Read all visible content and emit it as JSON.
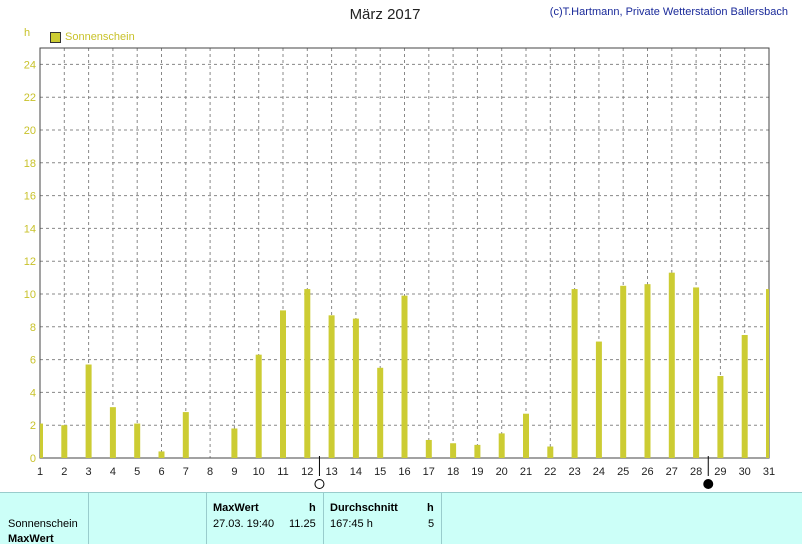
{
  "header": {
    "title": "März 2017",
    "credit": "(c)T.Hartmann, Private Wetterstation Ballersbach"
  },
  "colors": {
    "bar": "#cccc33",
    "axis_text": "#c8c22a",
    "grid": "#888888",
    "footer_bg": "#ccfff8"
  },
  "chart_data": {
    "type": "bar",
    "title": "März 2017",
    "ylabel": "h",
    "ylim": [
      0,
      25
    ],
    "yticks": [
      0,
      2,
      4,
      6,
      8,
      10,
      12,
      14,
      16,
      18,
      20,
      22,
      24
    ],
    "categories": [
      "1",
      "2",
      "3",
      "4",
      "5",
      "6",
      "7",
      "8",
      "9",
      "10",
      "11",
      "12",
      "13",
      "14",
      "15",
      "16",
      "17",
      "18",
      "19",
      "20",
      "21",
      "22",
      "23",
      "24",
      "25",
      "26",
      "27",
      "28",
      "29",
      "30",
      "31"
    ],
    "grid": true,
    "legend_position": "top-left",
    "series": [
      {
        "name": "Sonnenschein",
        "values": [
          2.1,
          2.0,
          5.7,
          3.1,
          2.1,
          0.4,
          2.8,
          0.0,
          1.8,
          6.3,
          9.0,
          10.3,
          8.7,
          8.5,
          5.5,
          9.9,
          1.1,
          0.9,
          0.8,
          1.5,
          2.7,
          0.7,
          10.3,
          7.1,
          10.5,
          10.6,
          11.3,
          10.4,
          5.0,
          7.5,
          10.3
        ]
      }
    ],
    "moon_phases": [
      {
        "day": 12,
        "phase": "full"
      },
      {
        "day": 28,
        "phase": "new"
      }
    ]
  },
  "footer": {
    "row_labels": [
      "Sonnenschein",
      "MaxWert"
    ],
    "max_header": "MaxWert",
    "max_unit": "h",
    "max_datetime": "27.03.  19:40",
    "max_value": "11.25",
    "avg_header": "Durchschnitt",
    "avg_unit": "h",
    "avg_total": "167:45 h",
    "avg_value": "5"
  }
}
